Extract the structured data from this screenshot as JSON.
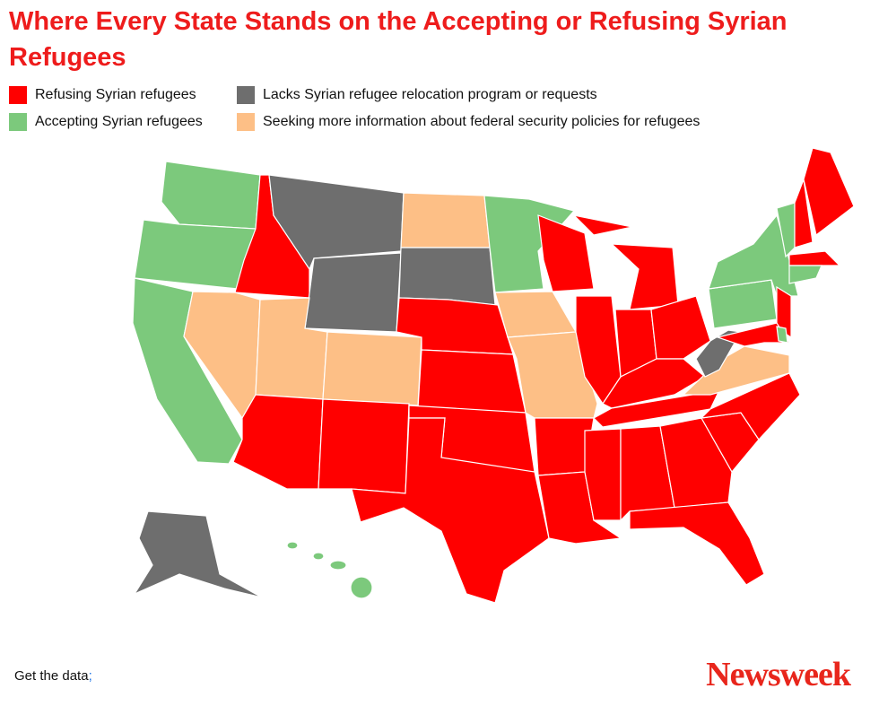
{
  "header": {
    "title": "Where Every State Stands on the Accepting or Refusing Syrian Refugees"
  },
  "legend": [
    {
      "label": "Refusing Syrian refugees",
      "color": "#ff0000"
    },
    {
      "label": "Lacks Syrian refugee relocation program or requests",
      "color": "#6e6e6e"
    },
    {
      "label": "Accepting Syrian refugees",
      "color": "#7cc97c"
    },
    {
      "label": "Seeking more information about federal security policies for refugees",
      "color": "#fdbf86"
    }
  ],
  "footer": {
    "text": "Get the data",
    "link": ";",
    "brand": "Newsweek"
  }
}
